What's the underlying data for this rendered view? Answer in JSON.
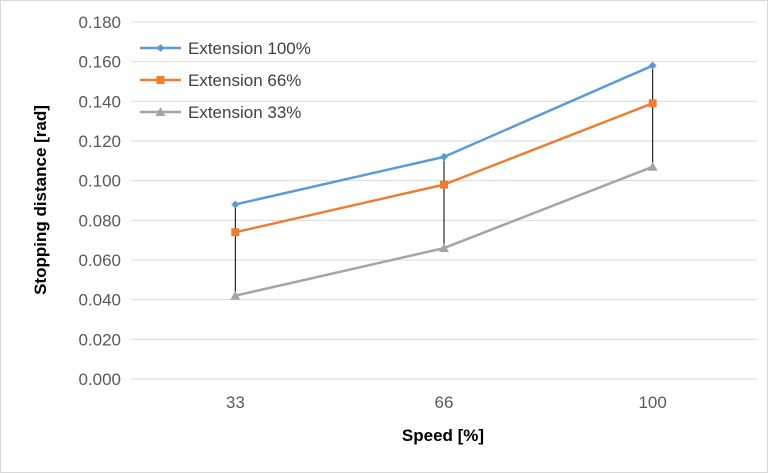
{
  "chart_data": {
    "type": "line",
    "title": "",
    "xlabel": "Speed [%]",
    "ylabel": "Stopping distance [rad]",
    "categories": [
      "33",
      "66",
      "100"
    ],
    "ylim": [
      0,
      0.18
    ],
    "yticks": [
      "0.000",
      "0.020",
      "0.040",
      "0.060",
      "0.080",
      "0.100",
      "0.120",
      "0.140",
      "0.160",
      "0.180"
    ],
    "grid": true,
    "legend_position": "top-left",
    "error_bars": "vertical black lines spanning from the highest to the lowest series at each speed",
    "series": [
      {
        "name": "Extension 100%",
        "values": [
          0.088,
          0.112,
          0.158
        ],
        "color": "#5b9bd5",
        "marker": "diamond"
      },
      {
        "name": "Extension 66%",
        "values": [
          0.074,
          0.098,
          0.139
        ],
        "color": "#ed7d31",
        "marker": "square"
      },
      {
        "name": "Extension 33%",
        "values": [
          0.042,
          0.066,
          0.107
        ],
        "color": "#a5a5a5",
        "marker": "triangle"
      }
    ]
  }
}
